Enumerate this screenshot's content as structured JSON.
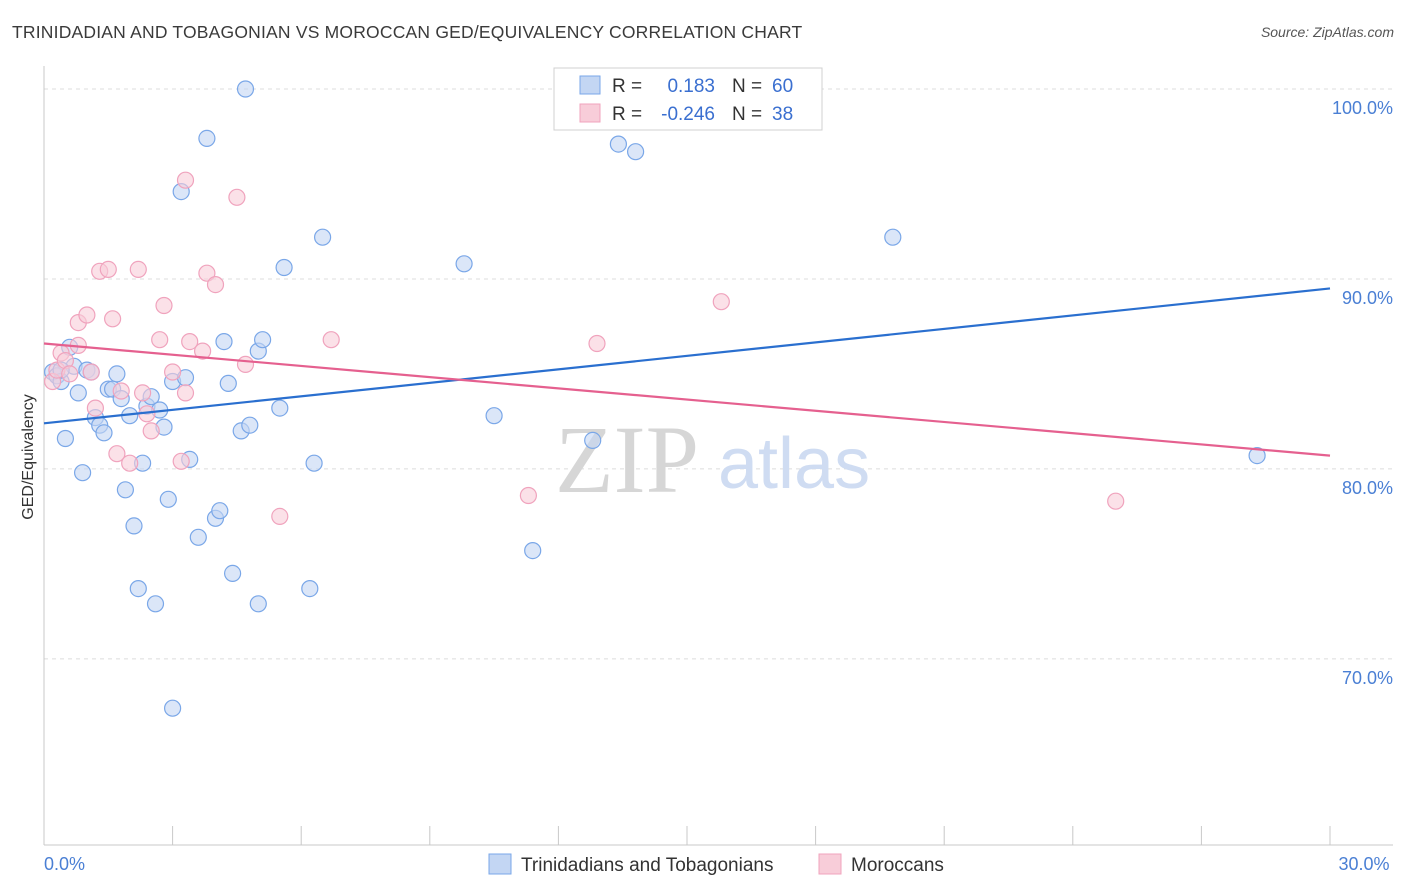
{
  "chart_data": {
    "type": "scatter",
    "title": "TRINIDADIAN AND TOBAGONIAN VS MOROCCAN GED/EQUIVALENCY CORRELATION CHART",
    "source": "Source: ZipAtlas.com",
    "ylabel": "GED/Equivalency",
    "xlabel": "",
    "xlim": [
      0,
      30
    ],
    "ylim": [
      60.2,
      101
    ],
    "x_tick_labels": [
      {
        "value": 0,
        "label": "0.0%"
      },
      {
        "value": 30,
        "label": "30.0%"
      }
    ],
    "y_tick_labels": [
      {
        "value": 100,
        "label": "100.0%"
      },
      {
        "value": 90,
        "label": "90.0%"
      },
      {
        "value": 80,
        "label": "80.0%"
      },
      {
        "value": 70,
        "label": "70.0%"
      }
    ],
    "grid": true,
    "legend_position": "bottom-center",
    "watermark": {
      "zip": "ZIP",
      "atlas": "atlas"
    },
    "stats": [
      {
        "series": "Trinidadians and Tobagonians",
        "r_label": "R =",
        "r_value": "0.183",
        "n_label": "N =",
        "n_value": "60"
      },
      {
        "series": "Moroccans",
        "r_label": "R =",
        "r_value": "-0.246",
        "n_label": "N =",
        "n_value": "38"
      }
    ],
    "series": [
      {
        "name": "Trinidadians and Tobagonians",
        "color": "#7aa7e8",
        "fill": "#c3d6f3",
        "trend_color": "#2a6fcf",
        "trend": {
          "x0": 0,
          "y0": 82.4,
          "x1": 30,
          "y1": 89.5
        },
        "points": [
          [
            0.2,
            85.1
          ],
          [
            0.3,
            84.9
          ],
          [
            0.4,
            84.6
          ],
          [
            0.5,
            81.6
          ],
          [
            0.6,
            86.4
          ],
          [
            0.7,
            85.4
          ],
          [
            0.8,
            84.0
          ],
          [
            0.9,
            79.8
          ],
          [
            1.0,
            85.2
          ],
          [
            1.1,
            85.1
          ],
          [
            1.2,
            82.7
          ],
          [
            1.3,
            82.3
          ],
          [
            1.4,
            81.9
          ],
          [
            1.5,
            84.2
          ],
          [
            1.6,
            84.2
          ],
          [
            1.7,
            85.0
          ],
          [
            1.8,
            83.7
          ],
          [
            1.9,
            78.9
          ],
          [
            2.0,
            82.8
          ],
          [
            2.1,
            77.0
          ],
          [
            2.2,
            73.7
          ],
          [
            2.3,
            80.3
          ],
          [
            2.4,
            83.3
          ],
          [
            2.5,
            83.8
          ],
          [
            2.6,
            72.9
          ],
          [
            2.7,
            83.1
          ],
          [
            2.8,
            82.2
          ],
          [
            2.9,
            78.4
          ],
          [
            3.0,
            84.6
          ],
          [
            3.0,
            67.4
          ],
          [
            3.2,
            94.6
          ],
          [
            3.3,
            84.8
          ],
          [
            3.4,
            80.5
          ],
          [
            3.6,
            76.4
          ],
          [
            3.8,
            97.4
          ],
          [
            4.0,
            77.4
          ],
          [
            4.1,
            77.8
          ],
          [
            4.2,
            86.7
          ],
          [
            4.3,
            84.5
          ],
          [
            4.4,
            74.5
          ],
          [
            4.6,
            82.0
          ],
          [
            4.8,
            82.3
          ],
          [
            4.7,
            100.0
          ],
          [
            5.0,
            72.9
          ],
          [
            5.0,
            86.2
          ],
          [
            5.1,
            86.8
          ],
          [
            5.5,
            83.2
          ],
          [
            5.6,
            90.6
          ],
          [
            6.2,
            73.7
          ],
          [
            6.3,
            80.3
          ],
          [
            6.5,
            92.2
          ],
          [
            9.8,
            90.8
          ],
          [
            10.5,
            82.8
          ],
          [
            11.4,
            75.7
          ],
          [
            12.8,
            81.5
          ],
          [
            13.4,
            97.1
          ],
          [
            13.8,
            96.7
          ],
          [
            19.8,
            92.2
          ],
          [
            28.3,
            80.7
          ],
          [
            0.4,
            85.2
          ]
        ]
      },
      {
        "name": "Moroccans",
        "color": "#f0a3bd",
        "fill": "#f8cdd9",
        "trend_color": "#e5608f",
        "trend": {
          "x0": 0,
          "y0": 86.6,
          "x1": 30,
          "y1": 80.7
        },
        "points": [
          [
            0.2,
            84.6
          ],
          [
            0.3,
            85.2
          ],
          [
            0.4,
            86.1
          ],
          [
            0.5,
            85.7
          ],
          [
            0.6,
            85.0
          ],
          [
            0.8,
            86.5
          ],
          [
            0.8,
            87.7
          ],
          [
            1.0,
            88.1
          ],
          [
            1.1,
            85.1
          ],
          [
            1.2,
            83.2
          ],
          [
            1.3,
            90.4
          ],
          [
            1.5,
            90.5
          ],
          [
            1.6,
            87.9
          ],
          [
            1.7,
            80.8
          ],
          [
            1.8,
            84.1
          ],
          [
            2.0,
            80.3
          ],
          [
            2.2,
            90.5
          ],
          [
            2.3,
            84.0
          ],
          [
            2.4,
            82.9
          ],
          [
            2.5,
            82.0
          ],
          [
            2.7,
            86.8
          ],
          [
            2.8,
            88.6
          ],
          [
            3.0,
            85.1
          ],
          [
            3.2,
            80.4
          ],
          [
            3.3,
            84.0
          ],
          [
            3.3,
            95.2
          ],
          [
            3.4,
            86.7
          ],
          [
            3.7,
            86.2
          ],
          [
            3.8,
            90.3
          ],
          [
            4.0,
            89.7
          ],
          [
            4.5,
            94.3
          ],
          [
            4.7,
            85.5
          ],
          [
            5.5,
            77.5
          ],
          [
            6.7,
            86.8
          ],
          [
            11.3,
            78.6
          ],
          [
            12.9,
            86.6
          ],
          [
            15.8,
            88.8
          ],
          [
            25.0,
            78.3
          ]
        ]
      }
    ]
  }
}
